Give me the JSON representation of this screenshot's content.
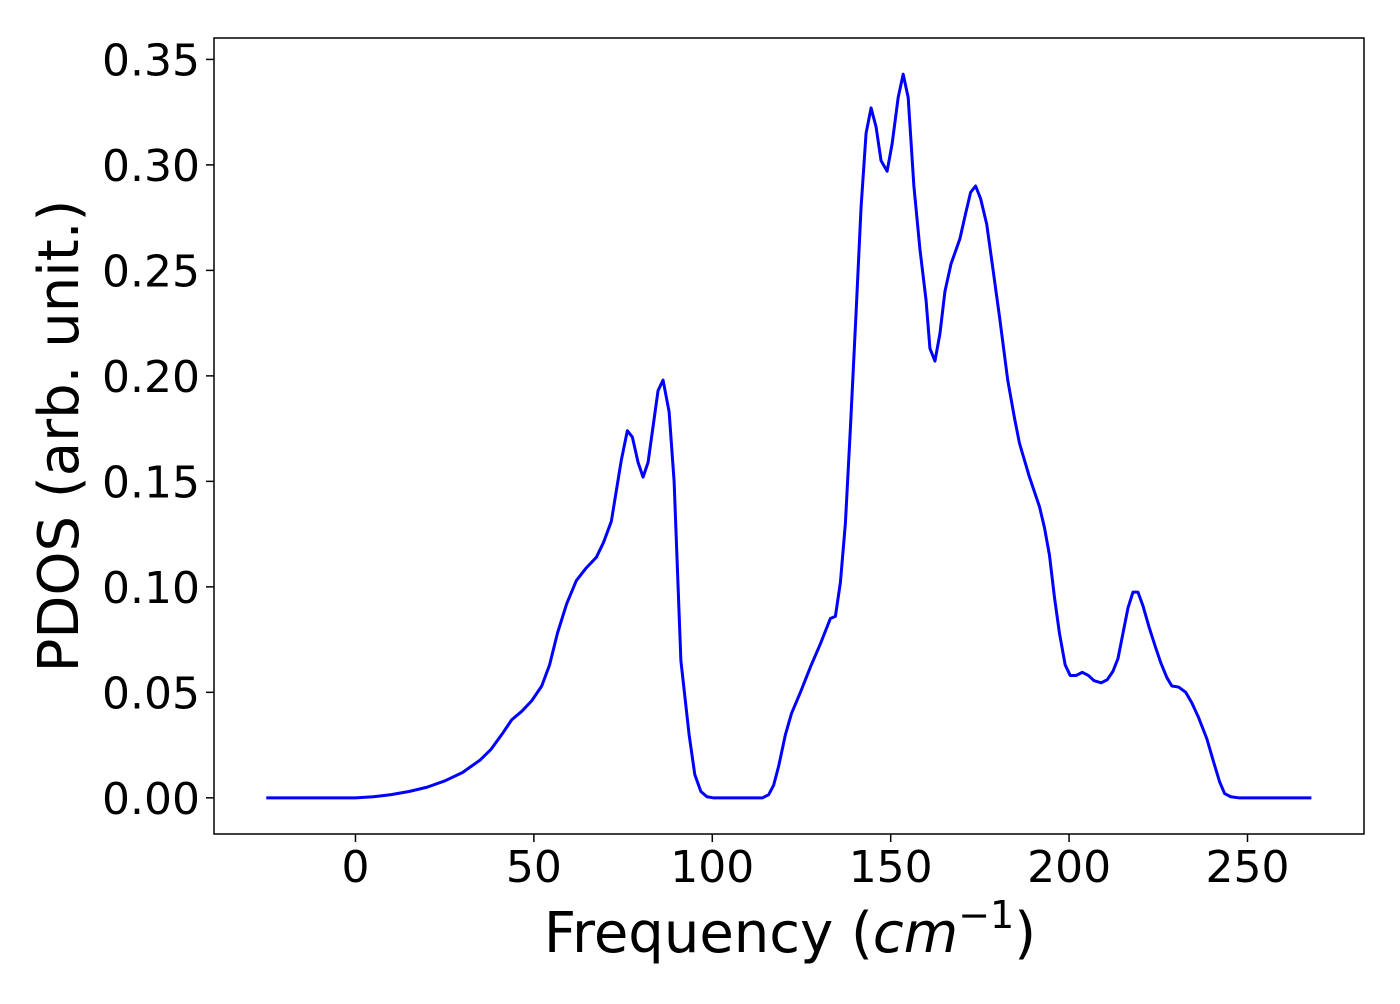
{
  "chart_data": {
    "type": "line",
    "x_label": {
      "text": "Frequency (",
      "unit": "cm",
      "exponent": "−1",
      "close": ")"
    },
    "y_label": "PDOS (arb. unit.)",
    "x": [
      -25,
      0,
      5,
      10,
      15,
      20,
      25,
      30,
      35,
      38,
      41.0,
      43.8,
      46.6,
      49.4,
      52.2,
      54.4,
      56.6,
      59.2,
      61.9,
      64.7,
      67.5,
      69.5,
      71.7,
      74.5,
      76.2,
      77.6,
      79.2,
      80.6,
      82.0,
      83.4,
      84.8,
      86.2,
      87.9,
      89.3,
      91.2,
      93.5,
      95.1,
      96.8,
      98.5,
      100.2,
      114.1,
      115.8,
      117.2,
      118.6,
      120.5,
      122.2,
      124.7,
      127.5,
      130.3,
      133.1,
      134.5,
      135.9,
      137.3,
      138.7,
      140.3,
      141.7,
      143.1,
      144.5,
      145.9,
      147.3,
      149.0,
      150.4,
      152.1,
      153.5,
      154.9,
      156.5,
      158.2,
      159.9,
      161.0,
      162.4,
      163.8,
      165.2,
      166.9,
      169.4,
      171.0,
      172.4,
      173.8,
      175.2,
      176.9,
      178.3,
      180.5,
      182.8,
      184.7,
      186.1,
      188.9,
      191.7,
      193.1,
      194.5,
      195.9,
      197.3,
      198.9,
      200.3,
      202.0,
      203.7,
      205.4,
      207.0,
      209.0,
      210.7,
      212.3,
      213.7,
      215.1,
      216.5,
      217.9,
      219.3,
      220.7,
      222.4,
      224.1,
      225.7,
      227.4,
      228.8,
      230.7,
      232.7,
      234.4,
      236.3,
      238.6,
      240.5,
      242.2,
      243.6,
      245.3,
      247.5,
      267.9
    ],
    "series": [
      {
        "color": "#0000ff",
        "values": [
          0,
          0,
          0.0005,
          0.0015,
          0.003,
          0.005,
          0.008,
          0.012,
          0.018,
          0.023,
          0.03,
          0.037,
          0.041,
          0.046,
          0.053,
          0.063,
          0.078,
          0.092,
          0.103,
          0.109,
          0.114,
          0.121,
          0.131,
          0.16,
          0.174,
          0.171,
          0.159,
          0.152,
          0.159,
          0.176,
          0.193,
          0.198,
          0.183,
          0.15,
          0.065,
          0.03,
          0.011,
          0.003,
          0.0005,
          0,
          0,
          0.0015,
          0.006,
          0.015,
          0.03,
          0.04,
          0.05,
          0.062,
          0.073,
          0.085,
          0.086,
          0.102,
          0.13,
          0.175,
          0.23,
          0.28,
          0.315,
          0.327,
          0.318,
          0.302,
          0.297,
          0.31,
          0.332,
          0.343,
          0.332,
          0.29,
          0.26,
          0.236,
          0.213,
          0.207,
          0.22,
          0.24,
          0.253,
          0.265,
          0.277,
          0.287,
          0.29,
          0.284,
          0.272,
          0.255,
          0.228,
          0.198,
          0.18,
          0.168,
          0.152,
          0.138,
          0.128,
          0.115,
          0.095,
          0.078,
          0.063,
          0.058,
          0.058,
          0.0595,
          0.058,
          0.0555,
          0.0545,
          0.056,
          0.06,
          0.066,
          0.078,
          0.09,
          0.0975,
          0.0975,
          0.091,
          0.081,
          0.072,
          0.064,
          0.057,
          0.053,
          0.0525,
          0.05,
          0.045,
          0.038,
          0.028,
          0.017,
          0.0075,
          0.002,
          0.0005,
          0,
          0
        ]
      }
    ],
    "xlim": [
      -39.65,
      282.65
    ],
    "ylim": [
      -0.01715,
      0.36015
    ],
    "xticks": [
      0,
      50,
      100,
      150,
      200,
      250
    ],
    "yticks": [
      {
        "value": 0,
        "label": "0.00"
      },
      0.05,
      {
        "value": 0.1,
        "label": "0.10"
      },
      0.15,
      {
        "value": 0.2,
        "label": "0.20"
      },
      0.25,
      {
        "value": 0.3,
        "label": "0.30"
      },
      0.35
    ]
  }
}
